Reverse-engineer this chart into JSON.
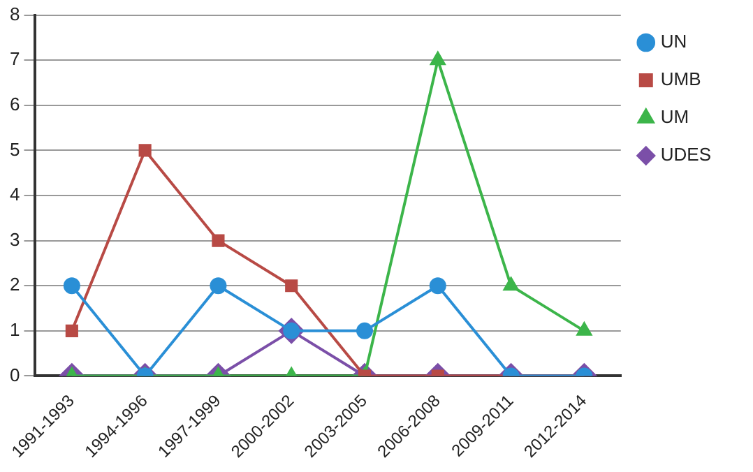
{
  "chart_data": {
    "type": "line",
    "categories": [
      "1991-1993",
      "1994-1996",
      "1997-1999",
      "2000-2002",
      "2003-2005",
      "2006-2008",
      "2009-2011",
      "2012-2014"
    ],
    "series": [
      {
        "name": "UN",
        "color": "#2a8fd6",
        "marker": "circle",
        "values": [
          2,
          0,
          2,
          1,
          1,
          2,
          0,
          0
        ]
      },
      {
        "name": "UMB",
        "color": "#b84a45",
        "marker": "square",
        "values": [
          1,
          5,
          3,
          2,
          0,
          0,
          0,
          0
        ]
      },
      {
        "name": "UM",
        "color": "#3cb54a",
        "marker": "triangle",
        "values": [
          0,
          0,
          0,
          0,
          0,
          7,
          2,
          1
        ]
      },
      {
        "name": "UDES",
        "color": "#7b4fa8",
        "marker": "diamond",
        "values": [
          0,
          0,
          0,
          1,
          0,
          0,
          0,
          0
        ]
      }
    ],
    "ylim": [
      0,
      8
    ],
    "yticks": [
      0,
      1,
      2,
      3,
      4,
      5,
      6,
      7,
      8
    ],
    "grid": "y",
    "legend": "right",
    "line_style": "solid"
  }
}
